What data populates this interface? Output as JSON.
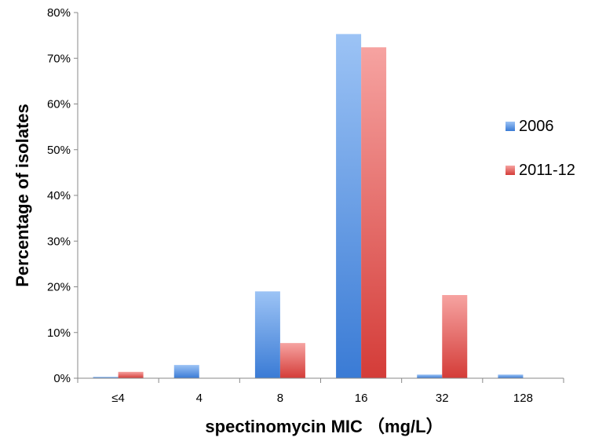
{
  "chart_data": {
    "type": "bar",
    "title": "",
    "xlabel": "spectinomycin MIC （mg/L）",
    "ylabel": "Percentage of isolates",
    "categories": [
      "≤4",
      "4",
      "8",
      "16",
      "32",
      "128"
    ],
    "series": [
      {
        "name": "2006",
        "values": [
          0.3,
          2.9,
          19.0,
          75.3,
          0.8,
          0.8
        ],
        "color_light": "#9cc3f5",
        "color_dark": "#3a7bd5"
      },
      {
        "name": "2011-12",
        "values": [
          1.4,
          0,
          7.7,
          72.4,
          18.2,
          0
        ],
        "color_light": "#f6a3a1",
        "color_dark": "#d43c38"
      }
    ],
    "ylim": [
      0,
      80
    ],
    "yticks": [
      0,
      10,
      20,
      30,
      40,
      50,
      60,
      70,
      80
    ],
    "ytick_labels": [
      "0%",
      "10%",
      "20%",
      "30%",
      "40%",
      "50%",
      "60%",
      "70%",
      "80%"
    ],
    "grid": false,
    "legend_position": "right"
  }
}
